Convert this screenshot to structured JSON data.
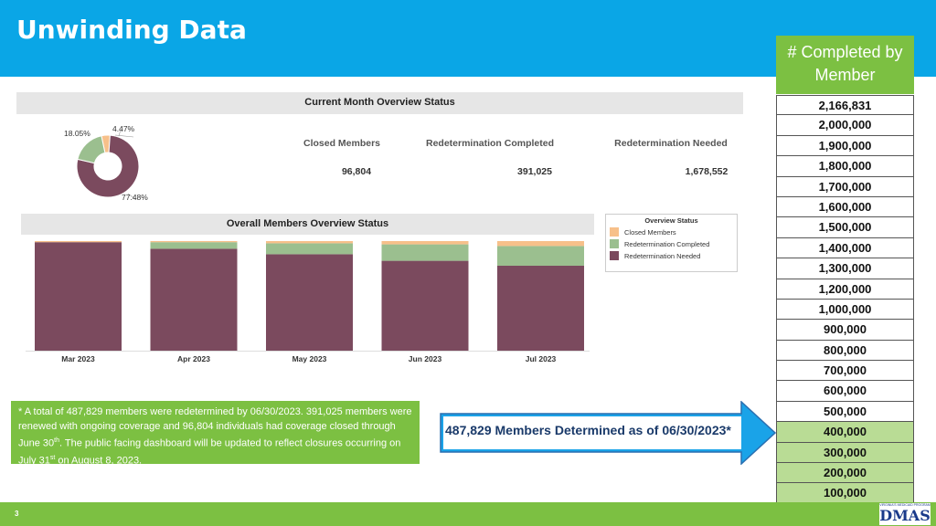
{
  "title": "Unwinding Data",
  "completed_header": "# Completed by Member",
  "milestones": [
    {
      "label": "2,166,831",
      "done": false
    },
    {
      "label": "2,000,000",
      "done": false
    },
    {
      "label": "1,900,000",
      "done": false
    },
    {
      "label": "1,800,000",
      "done": false
    },
    {
      "label": "1,700,000",
      "done": false
    },
    {
      "label": "1,600,000",
      "done": false
    },
    {
      "label": "1,500,000",
      "done": false
    },
    {
      "label": "1,400,000",
      "done": false
    },
    {
      "label": "1,300,000",
      "done": false
    },
    {
      "label": "1,200,000",
      "done": false
    },
    {
      "label": "1,000,000",
      "done": false
    },
    {
      "label": "900,000",
      "done": false
    },
    {
      "label": "800,000",
      "done": false
    },
    {
      "label": "700,000",
      "done": false
    },
    {
      "label": "600,000",
      "done": false
    },
    {
      "label": "500,000",
      "done": false
    },
    {
      "label": "400,000",
      "done": true
    },
    {
      "label": "300,000",
      "done": true
    },
    {
      "label": "200,000",
      "done": true
    },
    {
      "label": "100,000",
      "done": true
    }
  ],
  "stats": {
    "closed_label": "Closed Members",
    "closed_value": "96,804",
    "completed_label": "Redetermination Completed",
    "completed_value": "391,025",
    "needed_label": "Redetermination Needed",
    "needed_value": "1,678,552"
  },
  "note": {
    "line1": "* A total of 487,829 members were redetermined by 06/30/2023. 391,025 members were renewed with ongoing coverage and 96,804 individuals had coverage closed through June 30",
    "sup1": "th",
    "line2": ". The public facing dashboard will be updated to reflect closures occurring on July 31",
    "sup2": "st",
    "line3": " on August 8, 2023."
  },
  "arrow_text": "487,829 Members Determined as of 06/30/2023*",
  "page_number": "3",
  "logo": {
    "top": "VIRGINIA'S MEDICAID PROGRAM",
    "main": "DMAS"
  },
  "colors": {
    "header": "#0aa6e6",
    "accent_green": "#7cc042",
    "closed": "#f7c08a",
    "completed": "#9bbf8f",
    "needed": "#7b4a5e",
    "arrow": "#1aa3e8"
  },
  "chart_data": [
    {
      "type": "pie",
      "title": "Current Month Overview Status",
      "labels": [
        "Closed Members",
        "Redetermination Completed",
        "Redetermination Needed"
      ],
      "values": [
        4.47,
        18.05,
        77.48
      ],
      "value_labels": [
        "4.47%",
        "18.05%",
        "77.48%"
      ],
      "donut": true
    },
    {
      "type": "bar",
      "stacked": true,
      "title": "Overall Members Overview Status",
      "categories": [
        "Mar 2023",
        "Apr 2023",
        "May 2023",
        "Jun 2023",
        "Jul 2023"
      ],
      "series": [
        {
          "name": "Redetermination Needed",
          "values": [
            99,
            93,
            88,
            82,
            77.5
          ]
        },
        {
          "name": "Redetermination Completed",
          "values": [
            0,
            6,
            10,
            15,
            18
          ]
        },
        {
          "name": "Closed Members",
          "values": [
            1,
            1,
            2,
            3,
            4.5
          ]
        }
      ],
      "ylim": [
        0,
        100
      ],
      "legend_title": "Overview Status",
      "legend_items": [
        "Closed Members",
        "Redetermination Completed",
        "Redetermination Needed"
      ],
      "legend_position": "right"
    }
  ]
}
